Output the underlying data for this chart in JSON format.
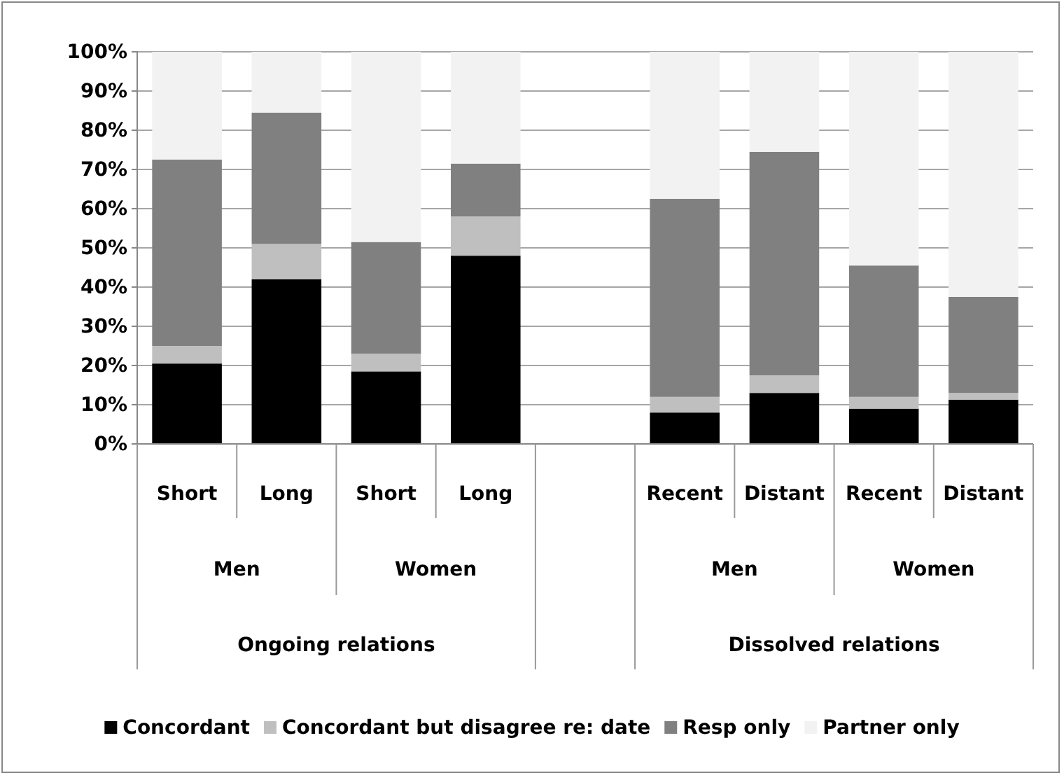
{
  "chart_data": {
    "type": "bar",
    "stacked": true,
    "categories": [
      "Short",
      "Long",
      "Short",
      "Long",
      null,
      "Recent",
      "Distant",
      "Recent",
      "Distant"
    ],
    "series": [
      {
        "name": "Concordant",
        "color": "#000000",
        "values": [
          20.5,
          42,
          18.5,
          48,
          null,
          8,
          13,
          9,
          11.3
        ]
      },
      {
        "name": "Concordant but disagree re: date",
        "color": "#bfbfbf",
        "values": [
          4.5,
          9,
          4.5,
          10,
          null,
          4,
          4.5,
          3,
          1.7
        ]
      },
      {
        "name": "Resp only",
        "color": "#808080",
        "values": [
          47.5,
          33.5,
          28.5,
          13.5,
          null,
          50.5,
          57,
          33.5,
          24.5
        ]
      },
      {
        "name": "Partner only",
        "color": "#f2f2f2",
        "values": [
          27.5,
          15.5,
          48.5,
          28.5,
          null,
          37.5,
          25.5,
          54.5,
          62.5
        ]
      }
    ],
    "ylim": [
      0,
      100
    ],
    "yticks": [
      {
        "value": 0,
        "label": "0%"
      },
      {
        "value": 10,
        "label": "10%"
      },
      {
        "value": 20,
        "label": "20%"
      },
      {
        "value": 30,
        "label": "30%"
      },
      {
        "value": 40,
        "label": "40%"
      },
      {
        "value": 50,
        "label": "50%"
      },
      {
        "value": 60,
        "label": "60%"
      },
      {
        "value": 70,
        "label": "70%"
      },
      {
        "value": 80,
        "label": "80%"
      },
      {
        "value": 90,
        "label": "90%"
      },
      {
        "value": 100,
        "label": "100%"
      }
    ],
    "grid": "y",
    "legend": "bottom",
    "annotations": [
      "Men",
      "Women",
      "Men",
      "Women",
      "Ongoing relations",
      "Dissolved relations"
    ]
  }
}
